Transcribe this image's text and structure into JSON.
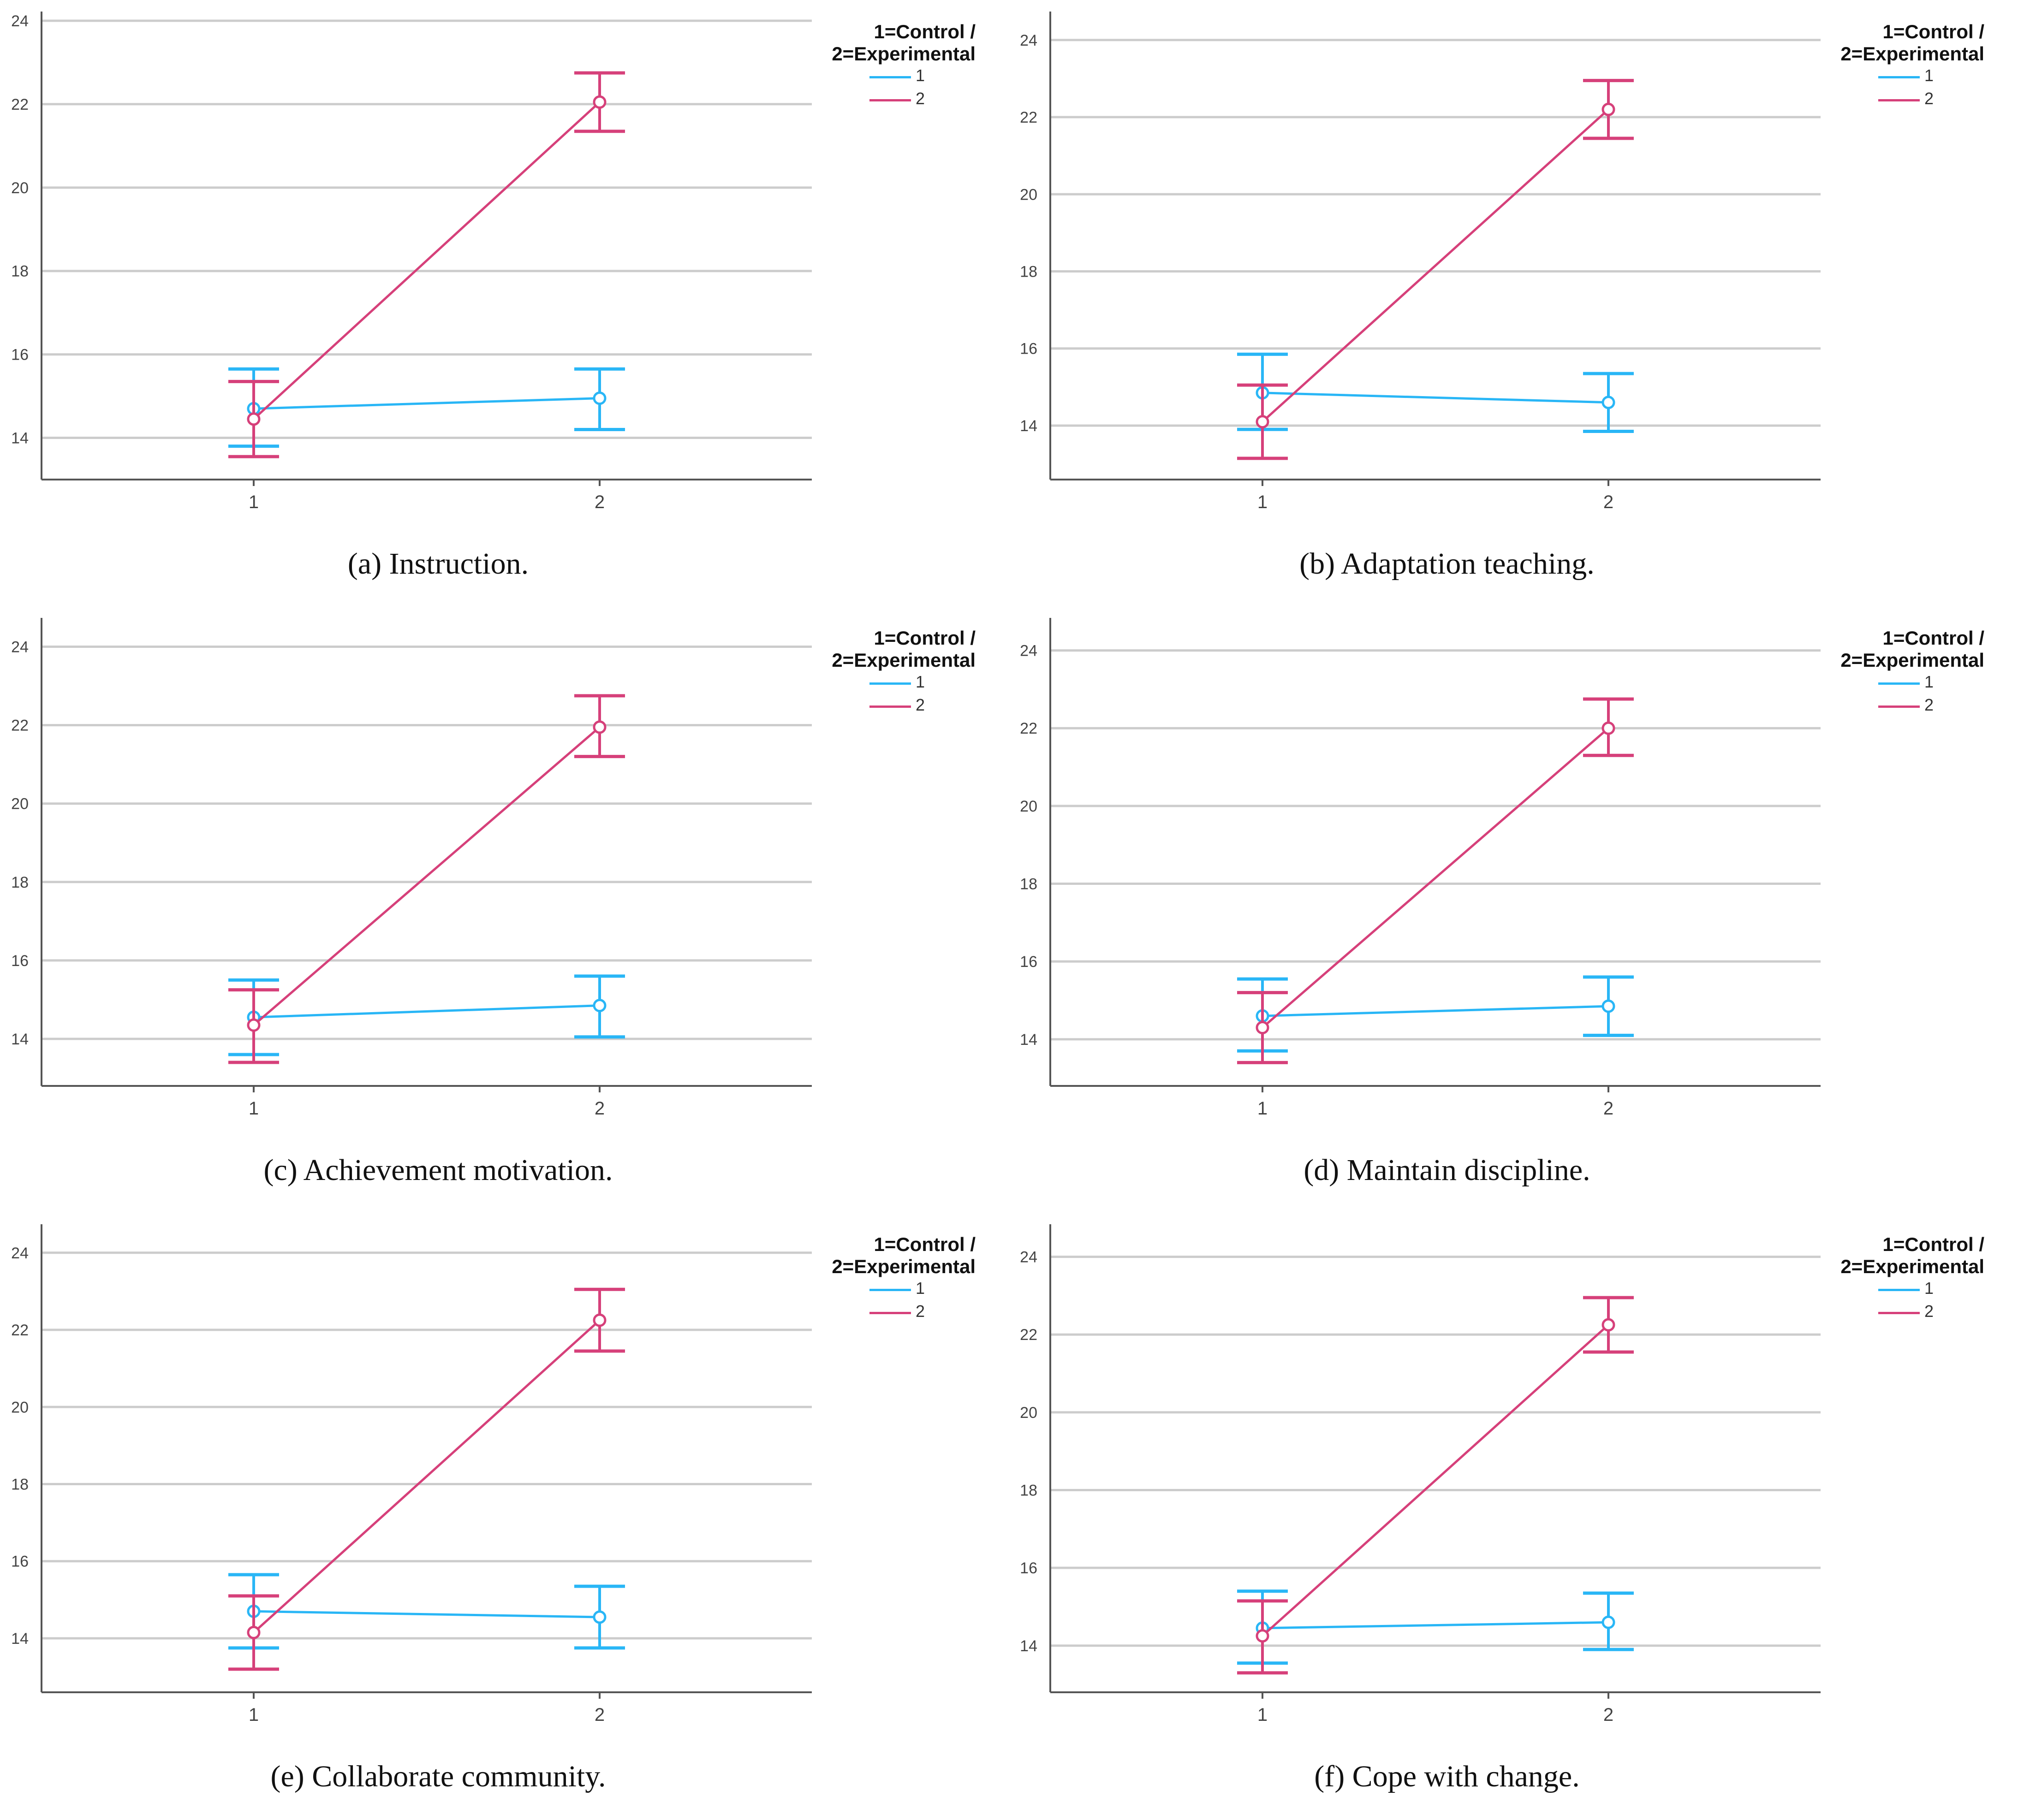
{
  "colors": {
    "control": "#29b6f6",
    "experimental": "#d6407a",
    "grid": "#cccccc",
    "axis": "#555555"
  },
  "legend_title": "1=Control / 2=Experimental",
  "legend_title_lines": [
    "1=Control /",
    "2=Experimental"
  ],
  "chart_data": [
    {
      "type": "line",
      "caption": "(a) Instruction.",
      "categories": [
        "1",
        "2"
      ],
      "ylim": [
        13,
        24
      ],
      "yticks": [
        14,
        16,
        18,
        20,
        22,
        24
      ],
      "grid": true,
      "legend_position": "top-right",
      "series": [
        {
          "name": "1",
          "values": [
            14.7,
            14.95
          ],
          "err_low": [
            13.8,
            14.2
          ],
          "err_high": [
            15.65,
            15.65
          ]
        },
        {
          "name": "2",
          "values": [
            14.45,
            22.05
          ],
          "err_low": [
            13.55,
            21.35
          ],
          "err_high": [
            15.35,
            22.75
          ]
        }
      ]
    },
    {
      "type": "line",
      "caption": "(b) Adaptation teaching.",
      "categories": [
        "1",
        "2"
      ],
      "ylim": [
        12.6,
        24.5
      ],
      "yticks": [
        14,
        16,
        18,
        20,
        22,
        24
      ],
      "grid": true,
      "legend_position": "top-right",
      "series": [
        {
          "name": "1",
          "values": [
            14.85,
            14.6
          ],
          "err_low": [
            13.9,
            13.85
          ],
          "err_high": [
            15.85,
            15.35
          ]
        },
        {
          "name": "2",
          "values": [
            14.1,
            22.2
          ],
          "err_low": [
            13.15,
            21.45
          ],
          "err_high": [
            15.05,
            22.95
          ]
        }
      ]
    },
    {
      "type": "line",
      "caption": "(c) Achievement motivation.",
      "categories": [
        "1",
        "2"
      ],
      "ylim": [
        12.8,
        24.5
      ],
      "yticks": [
        14,
        16,
        18,
        20,
        22,
        24
      ],
      "grid": true,
      "legend_position": "top-right",
      "series": [
        {
          "name": "1",
          "values": [
            14.55,
            14.85
          ],
          "err_low": [
            13.6,
            14.05
          ],
          "err_high": [
            15.5,
            15.6
          ]
        },
        {
          "name": "2",
          "values": [
            14.35,
            21.95
          ],
          "err_low": [
            13.4,
            21.2
          ],
          "err_high": [
            15.25,
            22.75
          ]
        }
      ]
    },
    {
      "type": "line",
      "caption": "(d) Maintain discipline.",
      "categories": [
        "1",
        "2"
      ],
      "ylim": [
        12.8,
        24.6
      ],
      "yticks": [
        14,
        16,
        18,
        20,
        22,
        24
      ],
      "grid": true,
      "legend_position": "top-right",
      "series": [
        {
          "name": "1",
          "values": [
            14.6,
            14.85
          ],
          "err_low": [
            13.7,
            14.1
          ],
          "err_high": [
            15.55,
            15.6
          ]
        },
        {
          "name": "2",
          "values": [
            14.3,
            22.0
          ],
          "err_low": [
            13.4,
            21.3
          ],
          "err_high": [
            15.2,
            22.75
          ]
        }
      ]
    },
    {
      "type": "line",
      "caption": "(e) Collaborate community.",
      "categories": [
        "1",
        "2"
      ],
      "ylim": [
        12.6,
        24.5
      ],
      "yticks": [
        14,
        16,
        18,
        20,
        22,
        24
      ],
      "grid": true,
      "legend_position": "top-right",
      "series": [
        {
          "name": "1",
          "values": [
            14.7,
            14.55
          ],
          "err_low": [
            13.75,
            13.75
          ],
          "err_high": [
            15.65,
            15.35
          ]
        },
        {
          "name": "2",
          "values": [
            14.15,
            22.25
          ],
          "err_low": [
            13.2,
            21.45
          ],
          "err_high": [
            15.1,
            23.05
          ]
        }
      ]
    },
    {
      "type": "line",
      "caption": "(f) Cope with change.",
      "categories": [
        "1",
        "2"
      ],
      "ylim": [
        12.8,
        24.6
      ],
      "yticks": [
        14,
        16,
        18,
        20,
        22,
        24
      ],
      "grid": true,
      "legend_position": "top-right",
      "series": [
        {
          "name": "1",
          "values": [
            14.45,
            14.6
          ],
          "err_low": [
            13.55,
            13.9
          ],
          "err_high": [
            15.4,
            15.35
          ]
        },
        {
          "name": "2",
          "values": [
            14.25,
            22.25
          ],
          "err_low": [
            13.3,
            21.55
          ],
          "err_high": [
            15.15,
            22.95
          ]
        }
      ]
    }
  ]
}
